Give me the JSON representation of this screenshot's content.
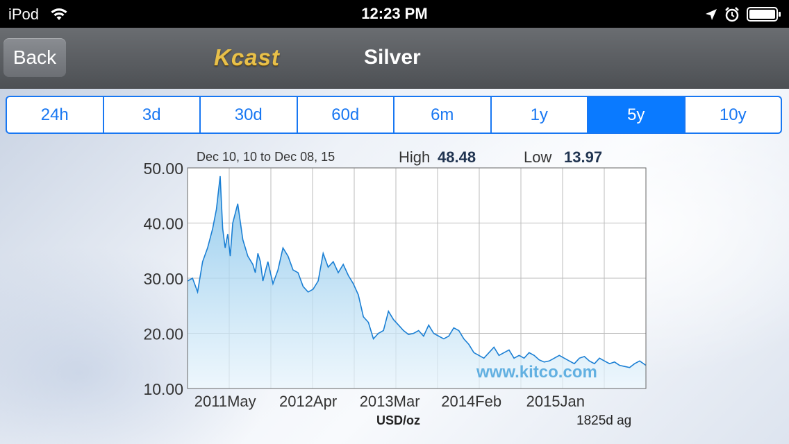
{
  "status_bar": {
    "carrier": "iPod",
    "time": "12:23 PM"
  },
  "nav": {
    "back_label": "Back",
    "logo_text": "Kcast",
    "title": "Silver"
  },
  "segments": [
    {
      "label": "24h",
      "active": false
    },
    {
      "label": "3d",
      "active": false
    },
    {
      "label": "30d",
      "active": false
    },
    {
      "label": "60d",
      "active": false
    },
    {
      "label": "6m",
      "active": false
    },
    {
      "label": "1y",
      "active": false
    },
    {
      "label": "5y",
      "active": true
    },
    {
      "label": "10y",
      "active": false
    }
  ],
  "colors": {
    "accent": "#0a7aff",
    "line": "#1a7fd4",
    "watermark": "#4aa3dc"
  },
  "chart_data": {
    "type": "area",
    "date_range": "Dec 10, 10 to Dec 08, 15",
    "high_label": "High",
    "high_value": "48.48",
    "low_label": "Low",
    "low_value": "13.97",
    "unit": "USD/oz",
    "period_note": "1825d ag",
    "watermark": "www.kitco.com",
    "ylim": [
      10,
      50
    ],
    "xlim": [
      0,
      1825
    ],
    "y_ticks": [
      "50.00",
      "40.00",
      "30.00",
      "20.00",
      "10.00"
    ],
    "y_tick_values": [
      50,
      40,
      30,
      20,
      10
    ],
    "x_tick_labels": [
      "2011May",
      "2012Apr",
      "2013Mar",
      "2014Feb",
      "2015Jan"
    ],
    "x_tick_days": [
      150,
      480,
      805,
      1130,
      1465
    ],
    "grid": true,
    "series": [
      {
        "x": [
          0,
          20,
          40,
          60,
          80,
          100,
          115,
          130,
          140,
          150,
          160,
          170,
          180,
          200,
          220,
          240,
          260,
          270,
          280,
          290,
          300,
          320,
          340,
          360,
          380,
          400,
          420,
          440,
          460,
          480,
          500,
          520,
          540,
          560,
          580,
          600,
          620,
          640,
          660,
          680,
          700,
          720,
          740,
          760,
          780,
          800,
          820,
          840,
          860,
          880,
          900,
          920,
          940,
          960,
          980,
          1000,
          1020,
          1040,
          1060,
          1080,
          1100,
          1120,
          1140,
          1160,
          1180,
          1200,
          1220,
          1240,
          1260,
          1280,
          1300,
          1320,
          1340,
          1360,
          1380,
          1400,
          1420,
          1440,
          1460,
          1480,
          1500,
          1520,
          1540,
          1560,
          1580,
          1600,
          1620,
          1640,
          1660,
          1680,
          1700,
          1720,
          1740,
          1760,
          1780,
          1800,
          1825
        ],
        "y": [
          29.5,
          30.0,
          27.5,
          33.0,
          35.5,
          39.0,
          42.5,
          48.5,
          39.0,
          35.5,
          38.0,
          34.0,
          40.0,
          43.5,
          37.0,
          34.0,
          32.5,
          31.0,
          34.5,
          33.0,
          29.5,
          33.0,
          29.0,
          31.5,
          35.5,
          34.0,
          31.5,
          31.0,
          28.5,
          27.5,
          28.0,
          29.5,
          34.5,
          32.0,
          33.0,
          31.0,
          32.5,
          30.5,
          29.0,
          27.0,
          23.0,
          22.0,
          19.0,
          20.0,
          20.5,
          24.0,
          22.5,
          21.5,
          20.5,
          19.8,
          20.0,
          20.5,
          19.5,
          21.5,
          20.0,
          19.5,
          19.0,
          19.5,
          21.0,
          20.5,
          19.0,
          18.0,
          16.5,
          16.0,
          15.5,
          16.5,
          17.5,
          16.0,
          16.5,
          17.0,
          15.5,
          16.0,
          15.5,
          16.5,
          16.0,
          15.2,
          14.8,
          15.0,
          15.5,
          16.0,
          15.5,
          15.0,
          14.5,
          15.5,
          15.8,
          15.0,
          14.5,
          15.5,
          15.0,
          14.5,
          14.8,
          14.2,
          14.0,
          13.8,
          14.5,
          15.0,
          14.2
        ]
      }
    ]
  }
}
